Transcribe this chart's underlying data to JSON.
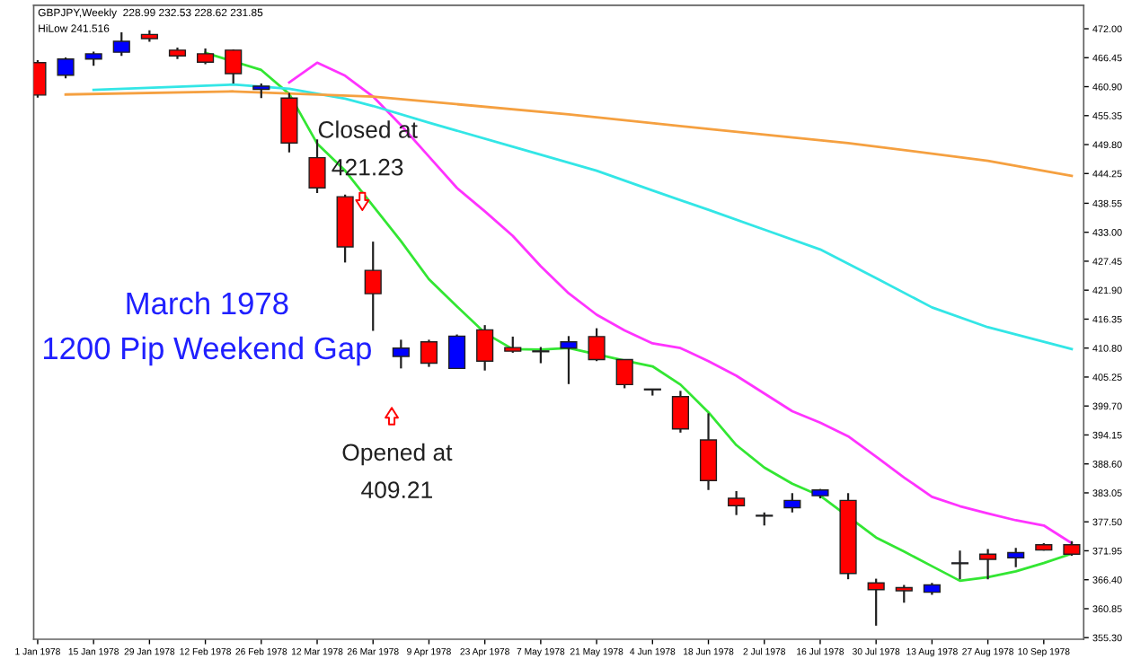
{
  "chart_data": {
    "type": "candlestick",
    "title": "GBPJPY,Weekly  228.99 232.53 228.62 231.85",
    "annotations": [
      "March 1978\n1200 Pip Weekend Gap",
      "HiLow 241.516",
      "Closed at\n421.23",
      "Opened at\n409.21"
    ],
    "series": [
      {
        "x": [
          "1978-01-01",
          "1978-01-08",
          "1978-01-15",
          "1978-01-22",
          "1978-01-29",
          "1978-02-05",
          "1978-02-12",
          "1978-02-19",
          "1978-02-26",
          "1978-03-05",
          "1978-03-12",
          "1978-03-19",
          "1978-03-26",
          "1978-04-02",
          "1978-04-09",
          "1978-04-16",
          "1978-04-23",
          "1978-04-30",
          "1978-05-07",
          "1978-05-14",
          "1978-05-21",
          "1978-05-28",
          "1978-06-04",
          "1978-06-11",
          "1978-06-18",
          "1978-06-25",
          "1978-07-02",
          "1978-07-09",
          "1978-07-16",
          "1978-07-23",
          "1978-07-30",
          "1978-08-06",
          "1978-08-13",
          "1978-08-20",
          "1978-08-27",
          "1978-09-03",
          "1978-09-10",
          "1978-09-17"
        ],
        "ohlc": [
          [
            465.5,
            466.0,
            458.8,
            459.3
          ],
          [
            463.1,
            466.5,
            462.5,
            466.2
          ],
          [
            466.2,
            467.6,
            464.9,
            467.2
          ],
          [
            467.5,
            471.3,
            466.8,
            469.6
          ],
          [
            470.9,
            471.7,
            469.5,
            470.1
          ],
          [
            467.9,
            468.4,
            466.2,
            466.8
          ],
          [
            467.2,
            468.2,
            465.2,
            465.6
          ],
          [
            467.9,
            468.0,
            461.5,
            463.4
          ],
          [
            460.4,
            461.5,
            458.7,
            461.0
          ],
          [
            458.7,
            459.7,
            448.3,
            450.1
          ],
          [
            447.3,
            450.8,
            440.5,
            441.5
          ],
          [
            439.8,
            440.2,
            427.2,
            430.2
          ],
          [
            425.7,
            431.2,
            414.1,
            421.23
          ],
          [
            409.21,
            412.4,
            406.9,
            410.8
          ],
          [
            412.0,
            412.4,
            407.2,
            407.9
          ],
          [
            406.9,
            413.4,
            406.9,
            413.1
          ],
          [
            414.3,
            415.2,
            406.5,
            408.3
          ],
          [
            410.9,
            413.0,
            409.9,
            410.2
          ],
          [
            410.1,
            411.0,
            407.9,
            410.2
          ],
          [
            410.8,
            413.1,
            403.9,
            412.0
          ],
          [
            413.0,
            414.6,
            408.3,
            408.6
          ],
          [
            408.6,
            408.6,
            403.1,
            403.8
          ],
          [
            402.8,
            402.9,
            401.7,
            402.9
          ],
          [
            401.5,
            402.6,
            394.6,
            395.3
          ],
          [
            393.2,
            398.3,
            383.6,
            385.4
          ],
          [
            382.0,
            383.4,
            378.8,
            380.6
          ],
          [
            378.6,
            379.3,
            376.8,
            378.7
          ],
          [
            380.2,
            383.0,
            379.3,
            381.6
          ],
          [
            382.5,
            383.8,
            382.0,
            383.6
          ],
          [
            381.6,
            383.0,
            366.5,
            367.6
          ],
          [
            365.8,
            366.6,
            357.6,
            364.5
          ],
          [
            364.9,
            365.4,
            362.0,
            364.3
          ],
          [
            364.0,
            365.8,
            363.5,
            365.4
          ],
          [
            369.5,
            372.0,
            366.5,
            369.6
          ],
          [
            371.3,
            372.3,
            366.5,
            370.3
          ],
          [
            370.6,
            372.5,
            368.8,
            371.6
          ],
          [
            373.1,
            373.4,
            372.0,
            372.1
          ],
          [
            373.1,
            373.8,
            371.0,
            371.3
          ]
        ],
        "colors": [
          "#ff0000",
          "#0000ff",
          "#0000ff",
          "#0000ff",
          "#ff0000",
          "#ff0000",
          "#ff0000",
          "#ff0000",
          "#0000ff",
          "#ff0000",
          "#ff0000",
          "#ff0000",
          "#ff0000",
          "#0000ff",
          "#ff0000",
          "#0000ff",
          "#ff0000",
          "#ff0000",
          "#000080",
          "#0000ff",
          "#ff0000",
          "#ff0000",
          "#000080",
          "#ff0000",
          "#ff0000",
          "#ff0000",
          "#000080",
          "#0000ff",
          "#0000ff",
          "#ff0000",
          "#ff0000",
          "#ff0000",
          "#0000ff",
          "#000080",
          "#ff0000",
          "#0000ff",
          "#ff0000",
          "#ff0000"
        ]
      },
      {
        "type": "line",
        "color": "#33e633",
        "x": [
          "1978-02-12",
          "1978-02-26",
          "1978-03-05",
          "1978-03-12",
          "1978-03-19",
          "1978-04-02",
          "1978-04-09",
          "1978-04-16",
          "1978-04-23",
          "1978-04-30",
          "1978-05-07",
          "1978-05-14",
          "1978-05-28",
          "1978-06-04",
          "1978-06-11",
          "1978-06-18",
          "1978-06-25",
          "1978-07-02",
          "1978-07-09",
          "1978-07-16",
          "1978-07-30",
          "1978-08-06",
          "1978-08-13",
          "1978-08-20",
          "1978-08-27",
          "1978-09-03",
          "1978-09-10",
          "1978-09-17"
        ],
        "values": [
          467.4,
          464.1,
          459.5,
          450.0,
          444.8,
          431.3,
          424.0,
          418.8,
          413.7,
          410.6,
          410.5,
          410.8,
          408.4,
          407.3,
          403.8,
          398.5,
          392.2,
          387.9,
          384.8,
          382.5,
          374.5,
          371.8,
          369.0,
          366.2,
          366.9,
          368.0,
          369.6,
          371.4
        ]
      },
      {
        "type": "line",
        "color": "#ff33ff",
        "x": [
          "1978-03-05",
          "1978-03-12",
          "1978-03-19",
          "1978-03-26",
          "1978-04-02",
          "1978-04-09",
          "1978-04-16",
          "1978-04-23",
          "1978-04-30",
          "1978-05-07",
          "1978-05-14",
          "1978-05-21",
          "1978-05-28",
          "1978-06-04",
          "1978-06-11",
          "1978-06-18",
          "1978-06-25",
          "1978-07-02",
          "1978-07-09",
          "1978-07-16",
          "1978-07-23",
          "1978-07-30",
          "1978-08-06",
          "1978-08-13",
          "1978-08-20",
          "1978-08-27",
          "1978-09-03",
          "1978-09-10",
          "1978-09-17"
        ],
        "values": [
          461.7,
          465.5,
          463.0,
          459.0,
          453.5,
          447.5,
          441.5,
          437.0,
          432.3,
          426.5,
          421.3,
          417.2,
          414.2,
          411.7,
          410.8,
          408.3,
          405.5,
          402.1,
          398.7,
          396.5,
          393.9,
          390.0,
          386.0,
          382.3,
          380.5,
          379.1,
          377.8,
          376.8,
          373.4
        ]
      },
      {
        "type": "line",
        "color": "#33e6e6",
        "x": [
          "1978-01-15",
          "1978-02-05",
          "1978-02-19",
          "1978-03-05",
          "1978-03-19",
          "1978-03-26",
          "1978-04-09",
          "1978-04-30",
          "1978-05-21",
          "1978-06-04",
          "1978-06-18",
          "1978-07-02",
          "1978-07-16",
          "1978-07-30",
          "1978-08-13",
          "1978-08-27",
          "1978-09-17"
        ],
        "values": [
          460.3,
          460.9,
          461.3,
          460.5,
          458.6,
          457.2,
          454.0,
          449.4,
          444.8,
          441.0,
          437.3,
          433.5,
          429.7,
          424.2,
          418.6,
          414.8,
          410.6
        ]
      },
      {
        "type": "line",
        "color": "#f5a040",
        "x": [
          "1978-01-08",
          "1978-02-19",
          "1978-03-26",
          "1978-05-14",
          "1978-06-18",
          "1978-07-23",
          "1978-08-27",
          "1978-09-17"
        ],
        "values": [
          459.4,
          460.0,
          459.0,
          455.6,
          452.8,
          450.1,
          446.7,
          443.8
        ]
      }
    ],
    "xlim": [
      "1977-12-31",
      "1978-09-20"
    ],
    "xticks": [
      {
        "value": "1978-01-01",
        "label": "1 Jan 1978"
      },
      {
        "value": "1978-01-15",
        "label": "15 Jan 1978"
      },
      {
        "value": "1978-01-29",
        "label": "29 Jan 1978"
      },
      {
        "value": "1978-02-12",
        "label": "12 Feb 1978"
      },
      {
        "value": "1978-02-26",
        "label": "26 Feb 1978"
      },
      {
        "value": "1978-03-12",
        "label": "12 Mar 1978"
      },
      {
        "value": "1978-03-26",
        "label": "26 Mar 1978"
      },
      {
        "value": "1978-04-09",
        "label": "9 Apr 1978"
      },
      {
        "value": "1978-04-23",
        "label": "23 Apr 1978"
      },
      {
        "value": "1978-05-07",
        "label": "7 May 1978"
      },
      {
        "value": "1978-05-21",
        "label": "21 May 1978"
      },
      {
        "value": "1978-06-04",
        "label": "4 Jun 1978"
      },
      {
        "value": "1978-06-18",
        "label": "18 Jun 1978"
      },
      {
        "value": "1978-07-02",
        "label": "2 Jul 1978"
      },
      {
        "value": "1978-07-16",
        "label": "16 Jul 1978"
      },
      {
        "value": "1978-07-30",
        "label": "30 Jul 1978"
      },
      {
        "value": "1978-08-13",
        "label": "13 Aug 1978"
      },
      {
        "value": "1978-08-27",
        "label": "27 Aug 1978"
      },
      {
        "value": "1978-09-10",
        "label": "10 Sep 1978"
      }
    ],
    "ylim": [
      355.0,
      476.5
    ],
    "yticks": [
      {
        "value": 472.0,
        "label": "472.00"
      },
      {
        "value": 466.45,
        "label": "466.45"
      },
      {
        "value": 460.9,
        "label": "460.90"
      },
      {
        "value": 455.35,
        "label": "455.35"
      },
      {
        "value": 449.8,
        "label": "449.80"
      },
      {
        "value": 444.25,
        "label": "444.25"
      },
      {
        "value": 438.55,
        "label": "438.55"
      },
      {
        "value": 433.0,
        "label": "433.00"
      },
      {
        "value": 427.45,
        "label": "427.45"
      },
      {
        "value": 421.9,
        "label": "421.90"
      },
      {
        "value": 416.35,
        "label": "416.35"
      },
      {
        "value": 410.8,
        "label": "410.80"
      },
      {
        "value": 405.25,
        "label": "405.25"
      },
      {
        "value": 399.7,
        "label": "399.70"
      },
      {
        "value": 394.15,
        "label": "394.15"
      },
      {
        "value": 388.6,
        "label": "388.60"
      },
      {
        "value": 383.05,
        "label": "383.05"
      },
      {
        "value": 377.5,
        "label": "377.50"
      },
      {
        "value": 371.95,
        "label": "371.95"
      },
      {
        "value": 366.4,
        "label": "366.40"
      },
      {
        "value": 360.85,
        "label": "360.85"
      },
      {
        "value": 355.3,
        "label": "355.30"
      }
    ],
    "grid": false,
    "legend": false
  }
}
